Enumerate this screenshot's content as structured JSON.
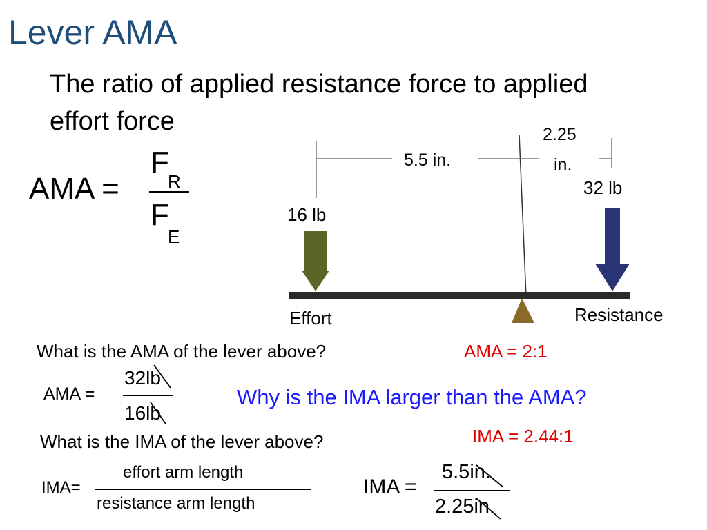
{
  "title": "Lever AMA",
  "subtitle": "The ratio of applied resistance force to applied effort force",
  "formula": {
    "lhs": "AMA =",
    "num_letter": "F",
    "num_sub": "R",
    "den_letter": "F",
    "den_sub": "E"
  },
  "diagram": {
    "effort_distance": "5.5 in.",
    "resistance_distance_line1": "2.25",
    "resistance_distance_line2": "in.",
    "effort_force": "16 lb",
    "resistance_force": "32 lb",
    "effort_label": "Effort",
    "resistance_label": "Resistance",
    "colors": {
      "effort_arrow": "#5b6626",
      "resistance_arrow": "#2a3575",
      "fulcrum": "#8a6a2a",
      "beam": "#2a2a2a"
    }
  },
  "question_ama": "What is the AMA of the lever above?",
  "answer_ama": "AMA = 2:1",
  "ama_calc": {
    "lhs": "AMA =",
    "num": "32lb",
    "den": "16lb"
  },
  "question_why": "Why is the IMA larger than the AMA?",
  "question_ima": "What is the IMA of the lever above?",
  "answer_ima": "IMA = 2.44:1",
  "ima_formula": {
    "lhs": "IMA=",
    "num": "effort arm length",
    "den": "resistance arm length"
  },
  "ima_calc": {
    "lhs": "IMA =",
    "num": "5.5in.",
    "den": "2.25in."
  }
}
